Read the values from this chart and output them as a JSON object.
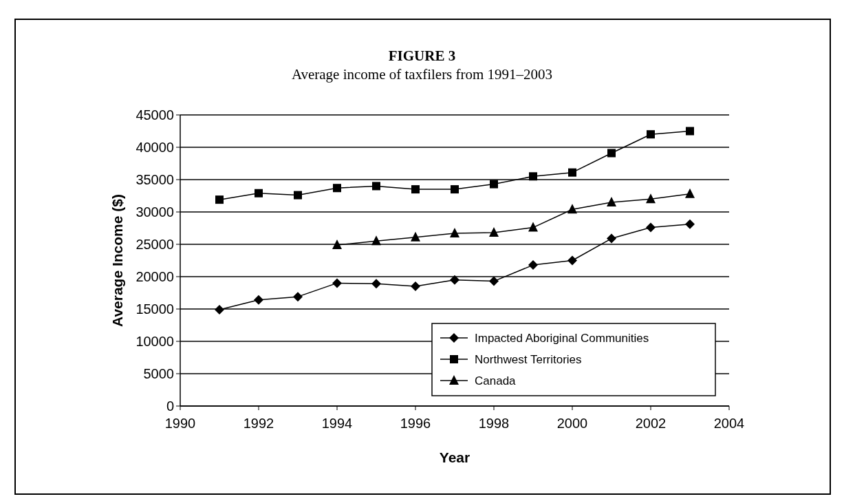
{
  "chart_data": {
    "type": "line",
    "title": "FIGURE 3",
    "subtitle": "Average income of taxfilers from 1991–2003",
    "xlabel": "Year",
    "ylabel": "Average Income ($)",
    "x": [
      1991,
      1992,
      1993,
      1994,
      1995,
      1996,
      1997,
      1998,
      1999,
      2000,
      2001,
      2002,
      2003
    ],
    "series": [
      {
        "name": "Impacted Aboriginal Communities",
        "color": "#000000",
        "marker": "diamond",
        "values": [
          14900,
          16400,
          16900,
          19000,
          18900,
          18500,
          19500,
          19300,
          21800,
          22500,
          25900,
          27600,
          28100
        ]
      },
      {
        "name": "Northwest Territories",
        "color": "#000000",
        "marker": "square",
        "values": [
          31900,
          32900,
          32600,
          33700,
          34000,
          33500,
          33500,
          34300,
          35500,
          36100,
          39100,
          42000,
          42500
        ]
      },
      {
        "name": "Canada",
        "color": "#000000",
        "marker": "triangle",
        "values": [
          null,
          null,
          null,
          24900,
          25500,
          26100,
          26700,
          26800,
          27600,
          30400,
          31500,
          32000,
          32800
        ]
      }
    ],
    "xlim": [
      1990,
      2004
    ],
    "xticks": [
      1990,
      1992,
      1994,
      1996,
      1998,
      2000,
      2002,
      2004
    ],
    "ylim": [
      0,
      45000
    ],
    "yticks": [
      0,
      5000,
      10000,
      15000,
      20000,
      25000,
      30000,
      35000,
      40000,
      45000
    ],
    "grid": "y",
    "legend": "bottom right",
    "line_style": "solid"
  }
}
